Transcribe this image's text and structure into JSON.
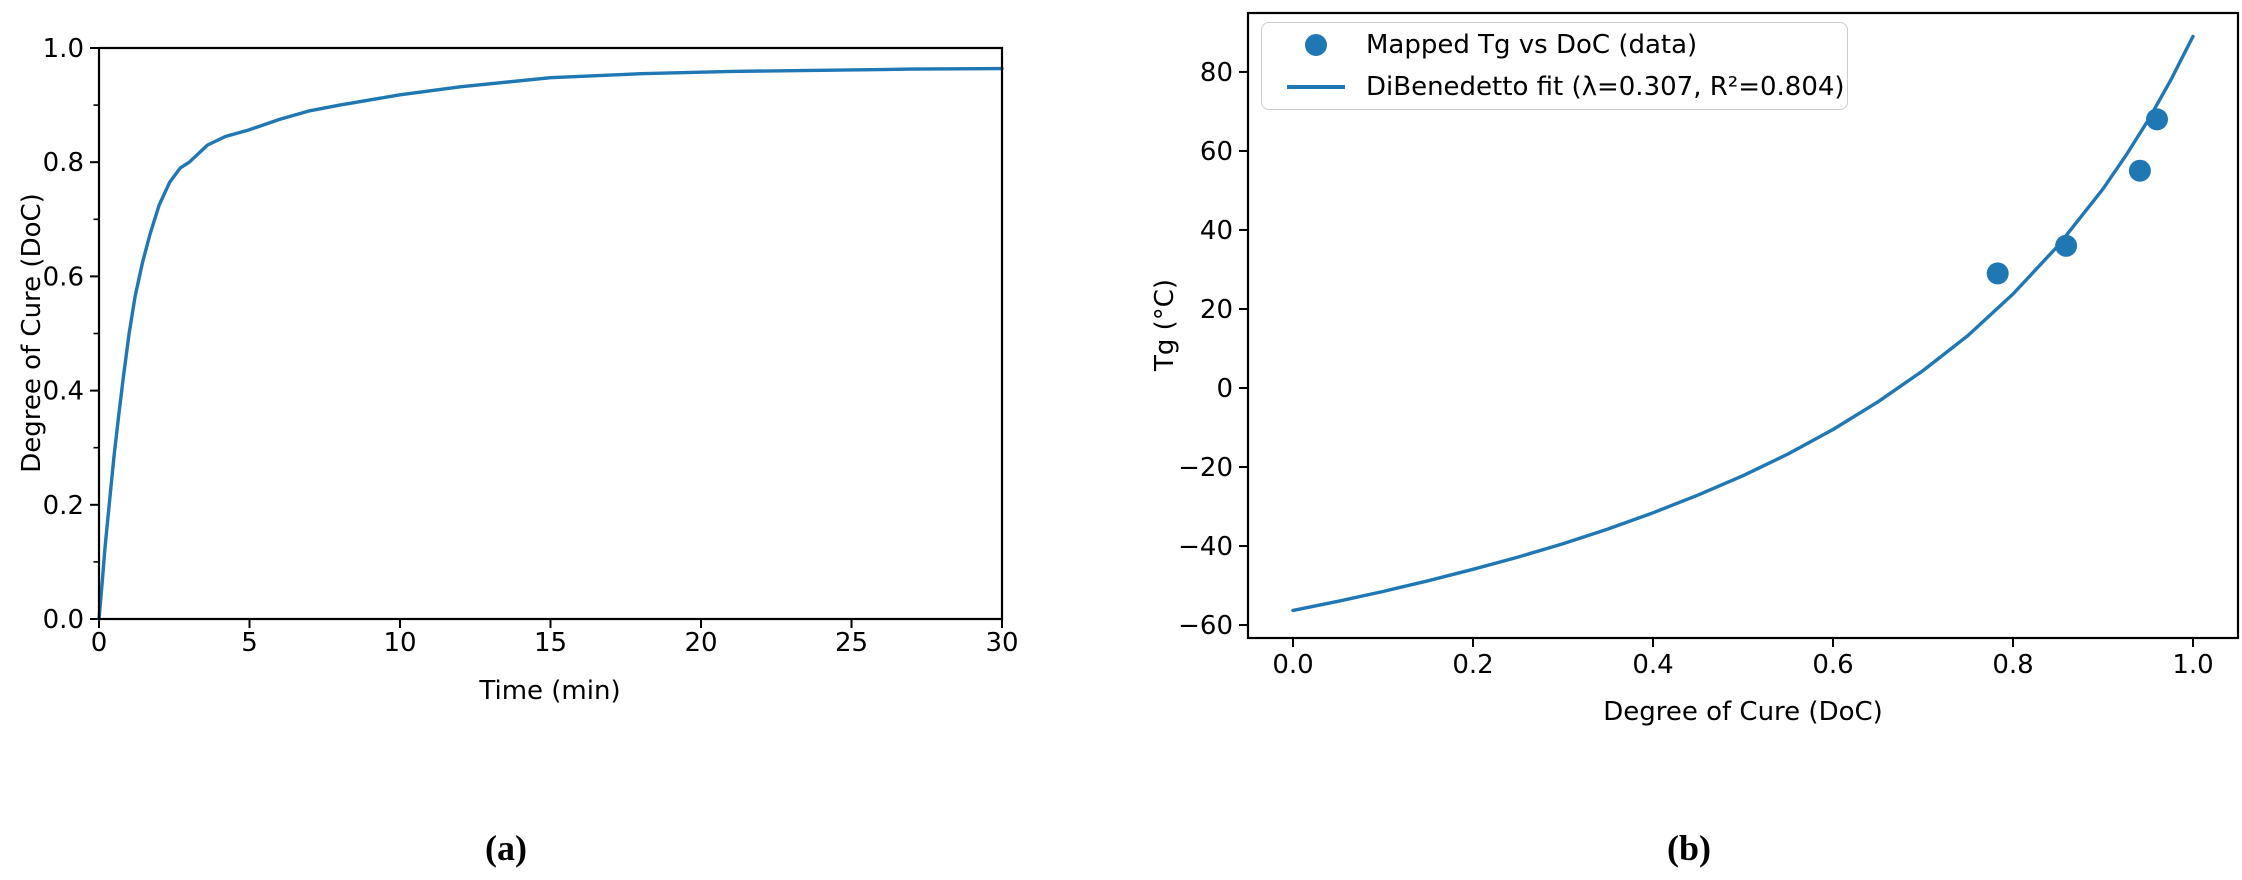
{
  "figure": {
    "caption_a": "(a)",
    "caption_b": "(b)"
  },
  "colors": {
    "accent_blue": "#1f77b4",
    "axis_color": "#000000",
    "legend_border": "#cccccc",
    "background": "#ffffff"
  },
  "chart_data": [
    {
      "id": "cure-vs-time",
      "type": "line",
      "title": "",
      "xlabel": "Time (min)",
      "ylabel": "Degree of Cure (DoC)",
      "xlim": [
        0,
        30
      ],
      "ylim": [
        0,
        1.0
      ],
      "grid": false,
      "xticks": {
        "values": [
          0,
          5,
          10,
          15,
          20,
          25,
          30
        ],
        "labels": [
          "0",
          "5",
          "10",
          "15",
          "20",
          "25",
          "30"
        ]
      },
      "yticks": {
        "values": [
          0.0,
          0.2,
          0.4,
          0.6,
          0.8,
          1.0
        ],
        "labels": [
          "0.0",
          "0.2",
          "0.4",
          "0.6",
          "0.8",
          "1.0"
        ]
      },
      "yminor": [
        0.1,
        0.3,
        0.5,
        0.7,
        0.9
      ],
      "series": [
        {
          "name": "degree-of-cure-curve",
          "color": "#1f77b4",
          "x": [
            0,
            0.1,
            0.2,
            0.34,
            0.5,
            0.65,
            0.8,
            1.0,
            1.2,
            1.45,
            1.7,
            2.0,
            2.35,
            2.7,
            3.0,
            3.6,
            4.2,
            5.0,
            6.0,
            7.0,
            8.0,
            10.0,
            12.0,
            15.0,
            18.0,
            21.0,
            24.0,
            27.0,
            30.0
          ],
          "y": [
            0,
            0.06,
            0.125,
            0.2,
            0.285,
            0.355,
            0.42,
            0.5,
            0.565,
            0.625,
            0.675,
            0.725,
            0.765,
            0.79,
            0.8,
            0.83,
            0.845,
            0.857,
            0.875,
            0.89,
            0.9,
            0.918,
            0.932,
            0.948,
            0.955,
            0.959,
            0.961,
            0.963,
            0.964
          ]
        }
      ]
    },
    {
      "id": "tg-vs-doc",
      "type": "scatter",
      "title": "",
      "xlabel": "Degree of Cure (DoC)",
      "ylabel": "Tg (°C)",
      "xlim": [
        -0.05,
        1.05
      ],
      "ylim": [
        -63.28,
        94.92
      ],
      "grid": false,
      "xticks": {
        "values": [
          0.0,
          0.2,
          0.4,
          0.6,
          0.8,
          1.0
        ],
        "labels": [
          "0.0",
          "0.2",
          "0.4",
          "0.6",
          "0.8",
          "1.0"
        ]
      },
      "yticks": {
        "values": [
          -60,
          -40,
          -20,
          0,
          20,
          40,
          60,
          80
        ],
        "labels": [
          "−60",
          "−40",
          "−20",
          "0",
          "20",
          "40",
          "60",
          "80"
        ]
      },
      "legend": {
        "position": "upper left",
        "entries": [
          {
            "marker": "dot",
            "label": "Mapped Tg vs DoC (data)"
          },
          {
            "marker": "line",
            "label": "DiBenedetto fit (λ=0.307, R²=0.804)"
          }
        ]
      },
      "scatter": {
        "name": "mapped-tg-vs-doc-points",
        "color": "#1f77b4",
        "points": [
          [
            0.783,
            29
          ],
          [
            0.859,
            36
          ],
          [
            0.941,
            55
          ],
          [
            0.96,
            68
          ]
        ]
      },
      "series": [
        {
          "name": "dibenedetto-fit-curve",
          "color": "#1f77b4",
          "lambda": 0.307,
          "r_squared": 0.804,
          "x": [
            0,
            0.05,
            0.1,
            0.15,
            0.2,
            0.25,
            0.3,
            0.35,
            0.4,
            0.45,
            0.5,
            0.55,
            0.6,
            0.65,
            0.7,
            0.75,
            0.8,
            0.85,
            0.9,
            0.925,
            0.95,
            0.975,
            1.0
          ],
          "y": [
            -56.3,
            -54.0,
            -51.5,
            -48.8,
            -45.9,
            -42.8,
            -39.4,
            -35.7,
            -31.6,
            -27.1,
            -22.2,
            -16.7,
            -10.5,
            -3.5,
            4.4,
            13.3,
            23.8,
            36.0,
            50.4,
            58.7,
            67.7,
            77.8,
            89.0
          ]
        }
      ]
    }
  ]
}
